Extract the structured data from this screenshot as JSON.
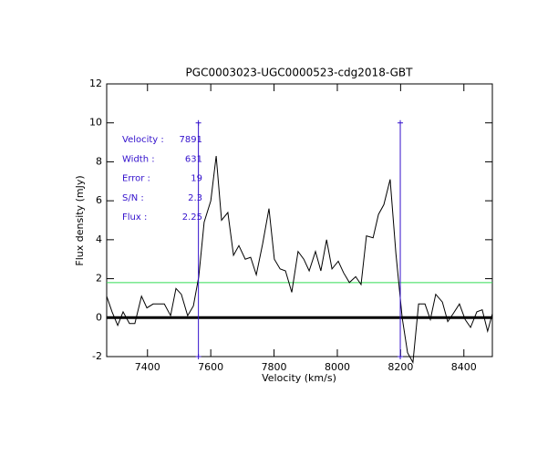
{
  "chart_data": {
    "type": "line",
    "title": "PGC0003023-UGC0000523-cdg2018-GBT",
    "x_label": "Velocity (km/s)",
    "y_label": "Flux density (mJy)",
    "xlim": [
      7271,
      8490
    ],
    "ylim": [
      -2,
      12
    ],
    "xticks": [
      7400,
      7600,
      7800,
      8000,
      8200,
      8400
    ],
    "yticks": [
      -2,
      0,
      2,
      4,
      6,
      8,
      10,
      12
    ],
    "x": [
      7271,
      7288,
      7306,
      7323,
      7343,
      7360,
      7381,
      7398,
      7418,
      7435,
      7453,
      7473,
      7490,
      7507,
      7527,
      7545,
      7562,
      7579,
      7600,
      7617,
      7634,
      7654,
      7672,
      7689,
      7709,
      7726,
      7744,
      7764,
      7784,
      7801,
      7819,
      7836,
      7856,
      7876,
      7894,
      7911,
      7931,
      7948,
      7966,
      7983,
      8003,
      8020,
      8038,
      8058,
      8075,
      8092,
      8113,
      8130,
      8147,
      8167,
      8185,
      8205,
      8222,
      8239,
      8257,
      8277,
      8294,
      8311,
      8332,
      8349,
      8366,
      8386,
      8404,
      8421,
      8441,
      8458,
      8475,
      8490
    ],
    "series": [
      {
        "color": "#000000",
        "values": [
          1.1,
          0.3,
          -0.4,
          0.3,
          -0.3,
          -0.3,
          1.1,
          0.5,
          0.7,
          0.7,
          0.7,
          0.1,
          1.5,
          1.2,
          0.1,
          0.6,
          2.1,
          4.9,
          6.0,
          8.3,
          5.0,
          5.4,
          3.2,
          3.7,
          3.0,
          3.1,
          2.2,
          3.8,
          5.6,
          3.0,
          2.5,
          2.4,
          1.3,
          3.4,
          3.0,
          2.4,
          3.4,
          2.4,
          4.0,
          2.5,
          2.9,
          2.3,
          1.8,
          2.1,
          1.7,
          4.2,
          4.1,
          5.3,
          5.8,
          7.1,
          3.3,
          0.0,
          -1.8,
          -2.3,
          0.7,
          0.7,
          -0.1,
          1.2,
          0.8,
          -0.2,
          0.2,
          0.7,
          -0.1,
          -0.5,
          0.3,
          0.4,
          -0.7,
          0.2
        ]
      }
    ],
    "baseline": {
      "value": 0,
      "color": "#000000"
    },
    "threshold": {
      "value": 1.8,
      "color": "#33dd55"
    },
    "window": {
      "x": [
        7561,
        8199
      ],
      "y_range": [
        -2,
        10
      ],
      "color": "#3311cc"
    },
    "stats": {
      "color": "#3311cc",
      "rows": [
        {
          "label": "Velocity :",
          "value": 7891
        },
        {
          "label": "Width :",
          "value": 631
        },
        {
          "label": "Error :",
          "value": 19
        },
        {
          "label": "S/N :",
          "value": 2.3
        },
        {
          "label": "Flux :",
          "value": 2.25
        }
      ]
    }
  }
}
